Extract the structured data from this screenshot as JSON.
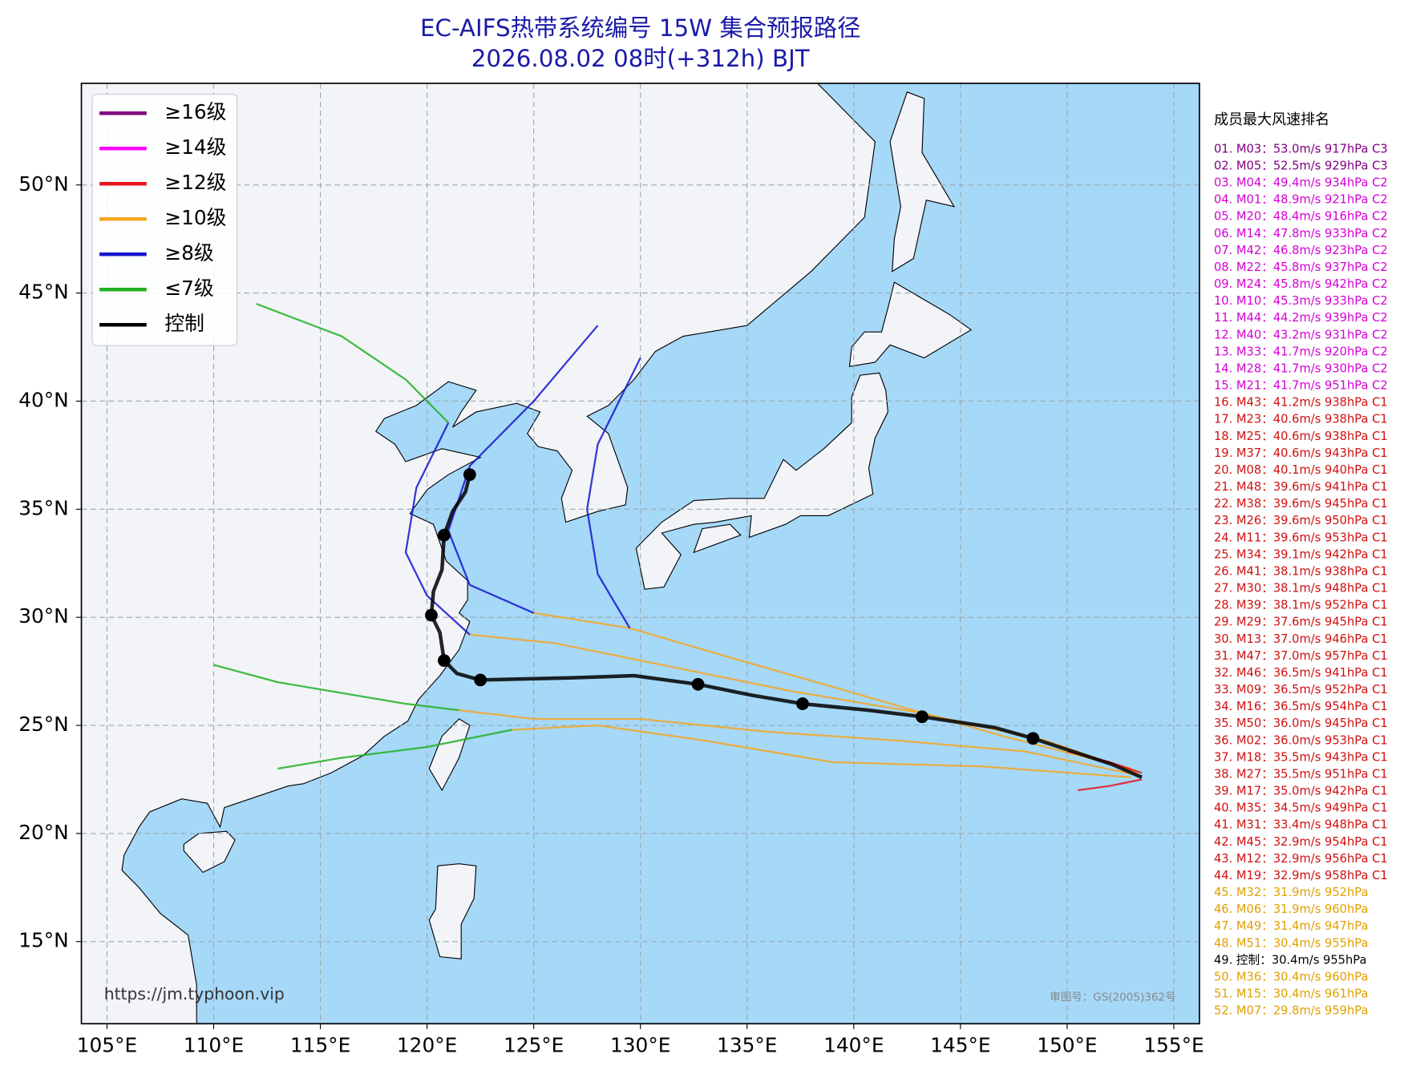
{
  "chart_data": {
    "type": "map",
    "title": "EC-AIFS热带系统编号 15W 集合预报路径",
    "subtitle": "2026.08.02 08时(+312h) BJT",
    "xlim": [
      103.8,
      156.2
    ],
    "ylim": [
      11.2,
      54.7
    ],
    "grid": true,
    "xticks": [
      {
        "value": 105,
        "label": "105°E"
      },
      {
        "value": 110,
        "label": "110°E"
      },
      {
        "value": 115,
        "label": "115°E"
      },
      {
        "value": 120,
        "label": "120°E"
      },
      {
        "value": 125,
        "label": "125°E"
      },
      {
        "value": 130,
        "label": "130°E"
      },
      {
        "value": 135,
        "label": "135°E"
      },
      {
        "value": 140,
        "label": "140°E"
      },
      {
        "value": 145,
        "label": "145°E"
      },
      {
        "value": 150,
        "label": "150°E"
      },
      {
        "value": 155,
        "label": "155°E"
      }
    ],
    "yticks": [
      {
        "value": 15,
        "label": "15°N"
      },
      {
        "value": 20,
        "label": "20°N"
      },
      {
        "value": 25,
        "label": "25°N"
      },
      {
        "value": 30,
        "label": "30°N"
      },
      {
        "value": 35,
        "label": "35°N"
      },
      {
        "value": 40,
        "label": "40°N"
      },
      {
        "value": 45,
        "label": "45°N"
      },
      {
        "value": 50,
        "label": "50°N"
      }
    ],
    "legend": [
      {
        "label": "≥16级",
        "color": "#800080"
      },
      {
        "label": "≥14级",
        "color": "#ff00ff"
      },
      {
        "label": "≥12级",
        "color": "#e8141c"
      },
      {
        "label": "≥10级",
        "color": "#f5a623"
      },
      {
        "label": "≥8级",
        "color": "#1515d0"
      },
      {
        "label": "≤7级",
        "color": "#22b022"
      },
      {
        "label": "控制",
        "color": "#000000"
      }
    ],
    "tracks": [
      {
        "color": "#f5a623",
        "lon": [
          153.3,
          149,
          143,
          137,
          131,
          126,
          122
        ],
        "lat": [
          22.8,
          24.3,
          25.6,
          26.6,
          27.8,
          28.8,
          29.2
        ]
      },
      {
        "color": "#f5a623",
        "lon": [
          153.3,
          148,
          142,
          136,
          130,
          125,
          121.5
        ],
        "lat": [
          22.7,
          23.8,
          24.3,
          24.7,
          25.3,
          25.3,
          25.7
        ]
      },
      {
        "color": "#f5a623",
        "lon": [
          153,
          147,
          140,
          134,
          129.5,
          125
        ],
        "lat": [
          23,
          24.5,
          26.5,
          28.2,
          29.5,
          30.2
        ]
      },
      {
        "color": "#f5a623",
        "lon": [
          153,
          146,
          139,
          133,
          128,
          124
        ],
        "lat": [
          22.6,
          23.1,
          23.3,
          24.3,
          25,
          24.8
        ]
      },
      {
        "color": "#1515d0",
        "lon": [
          125,
          122,
          121,
          122,
          125,
          128
        ],
        "lat": [
          30.2,
          31.5,
          34,
          37,
          40,
          43.5
        ]
      },
      {
        "color": "#1515d0",
        "lon": [
          122,
          120,
          119,
          119.5,
          121
        ],
        "lat": [
          29.2,
          31,
          33,
          36,
          39
        ]
      },
      {
        "color": "#1515d0",
        "lon": [
          129.5,
          128,
          127.5,
          128,
          130
        ],
        "lat": [
          29.5,
          32,
          35,
          38,
          42
        ]
      },
      {
        "color": "#22b022",
        "lon": [
          121.5,
          119,
          116,
          113,
          110
        ],
        "lat": [
          25.7,
          26,
          26.5,
          27,
          27.8
        ]
      },
      {
        "color": "#22b022",
        "lon": [
          121,
          119,
          116,
          112
        ],
        "lat": [
          39,
          41,
          43,
          44.5
        ]
      },
      {
        "color": "#22b022",
        "lon": [
          124,
          120,
          116,
          113
        ],
        "lat": [
          24.8,
          24,
          23.5,
          23
        ]
      },
      {
        "color": "#e8141c",
        "lon": [
          153.5,
          152,
          150.5
        ],
        "lat": [
          22.5,
          22.2,
          22
        ]
      },
      {
        "color": "#e8141c",
        "lon": [
          153.5,
          152,
          150
        ],
        "lat": [
          22.8,
          23.3,
          23.8
        ]
      }
    ],
    "control": {
      "color": "#000000",
      "lon": [
        153.5,
        152.1,
        148.4,
        146.6,
        143.2,
        140.7,
        137.6,
        135.2,
        132.7,
        129.7,
        126.7,
        122.5,
        121.4,
        120.8,
        120.6,
        120.2,
        120.3,
        120.7,
        120.8,
        121.2,
        121.8,
        122.0
      ],
      "lat": [
        22.6,
        23.2,
        24.4,
        24.9,
        25.4,
        25.7,
        26.0,
        26.4,
        26.9,
        27.3,
        27.2,
        27.1,
        27.4,
        28.0,
        29.3,
        30.1,
        31.2,
        32.2,
        33.8,
        34.9,
        35.8,
        36.6
      ],
      "dots_lon": [
        148.4,
        143.2,
        137.6,
        132.7,
        122.5,
        120.8,
        120.2,
        120.8,
        122.0
      ],
      "dots_lat": [
        24.4,
        25.4,
        26.0,
        26.9,
        27.1,
        28.0,
        30.1,
        33.8,
        36.6
      ]
    },
    "source": "https://jm.typhoon.vip",
    "review_no": "审图号：GS(2005)362号",
    "ranking": {
      "title": "成员最大风速排名",
      "items": [
        {
          "text": "01. M03：53.0m/s 917hPa C3",
          "color": "#800080"
        },
        {
          "text": "02. M05：52.5m/s 929hPa C3",
          "color": "#800080"
        },
        {
          "text": "03. M04：49.4m/s 934hPa C2",
          "color": "#d400d4"
        },
        {
          "text": "04. M01：48.9m/s 921hPa C2",
          "color": "#d400d4"
        },
        {
          "text": "05. M20：48.4m/s 916hPa C2",
          "color": "#d400d4"
        },
        {
          "text": "06. M14：47.8m/s 933hPa C2",
          "color": "#d400d4"
        },
        {
          "text": "07. M42：46.8m/s 923hPa C2",
          "color": "#d400d4"
        },
        {
          "text": "08. M22：45.8m/s 937hPa C2",
          "color": "#d400d4"
        },
        {
          "text": "09. M24：45.8m/s 942hPa C2",
          "color": "#d400d4"
        },
        {
          "text": "10. M10：45.3m/s 933hPa C2",
          "color": "#d400d4"
        },
        {
          "text": "11. M44：44.2m/s 939hPa C2",
          "color": "#d400d4"
        },
        {
          "text": "12. M40：43.2m/s 931hPa C2",
          "color": "#d400d4"
        },
        {
          "text": "13. M33：41.7m/s 920hPa C2",
          "color": "#d400d4"
        },
        {
          "text": "14. M28：41.7m/s 930hPa C2",
          "color": "#d400d4"
        },
        {
          "text": "15. M21：41.7m/s 951hPa C2",
          "color": "#d400d4"
        },
        {
          "text": "16. M43：41.2m/s 938hPa C1",
          "color": "#d01010"
        },
        {
          "text": "17. M23：40.6m/s 938hPa C1",
          "color": "#d01010"
        },
        {
          "text": "18. M25：40.6m/s 938hPa C1",
          "color": "#d01010"
        },
        {
          "text": "19. M37：40.6m/s 943hPa C1",
          "color": "#d01010"
        },
        {
          "text": "20. M08：40.1m/s 940hPa C1",
          "color": "#d01010"
        },
        {
          "text": "21. M48：39.6m/s 941hPa C1",
          "color": "#d01010"
        },
        {
          "text": "22. M38：39.6m/s 945hPa C1",
          "color": "#d01010"
        },
        {
          "text": "23. M26：39.6m/s 950hPa C1",
          "color": "#d01010"
        },
        {
          "text": "24. M11：39.6m/s 953hPa C1",
          "color": "#d01010"
        },
        {
          "text": "25. M34：39.1m/s 942hPa C1",
          "color": "#d01010"
        },
        {
          "text": "26. M41：38.1m/s 938hPa C1",
          "color": "#d01010"
        },
        {
          "text": "27. M30：38.1m/s 948hPa C1",
          "color": "#d01010"
        },
        {
          "text": "28. M39：38.1m/s 952hPa C1",
          "color": "#d01010"
        },
        {
          "text": "29. M29：37.6m/s 945hPa C1",
          "color": "#d01010"
        },
        {
          "text": "30. M13：37.0m/s 946hPa C1",
          "color": "#d01010"
        },
        {
          "text": "31. M47：37.0m/s 957hPa C1",
          "color": "#d01010"
        },
        {
          "text": "32. M46：36.5m/s 941hPa C1",
          "color": "#d01010"
        },
        {
          "text": "33. M09：36.5m/s 952hPa C1",
          "color": "#d01010"
        },
        {
          "text": "34. M16：36.5m/s 954hPa C1",
          "color": "#d01010"
        },
        {
          "text": "35. M50：36.0m/s 945hPa C1",
          "color": "#d01010"
        },
        {
          "text": "36. M02：36.0m/s 953hPa C1",
          "color": "#d01010"
        },
        {
          "text": "37. M18：35.5m/s 943hPa C1",
          "color": "#d01010"
        },
        {
          "text": "38. M27：35.5m/s 951hPa C1",
          "color": "#d01010"
        },
        {
          "text": "39. M17：35.0m/s 942hPa C1",
          "color": "#d01010"
        },
        {
          "text": "40. M35：34.5m/s 949hPa C1",
          "color": "#d01010"
        },
        {
          "text": "41. M31：33.4m/s 948hPa C1",
          "color": "#d01010"
        },
        {
          "text": "42. M45：32.9m/s 954hPa C1",
          "color": "#d01010"
        },
        {
          "text": "43. M12：32.9m/s 956hPa C1",
          "color": "#d01010"
        },
        {
          "text": "44. M19：32.9m/s 958hPa C1",
          "color": "#d01010"
        },
        {
          "text": "45. M32：31.9m/s 952hPa",
          "color": "#e0a000"
        },
        {
          "text": "46. M06：31.9m/s 960hPa",
          "color": "#e0a000"
        },
        {
          "text": "47. M49：31.4m/s 947hPa",
          "color": "#e0a000"
        },
        {
          "text": "48. M51：30.4m/s 955hPa",
          "color": "#e0a000"
        },
        {
          "text": "49. 控制：30.4m/s 955hPa",
          "color": "#000000"
        },
        {
          "text": "50. M36：30.4m/s 960hPa",
          "color": "#e0a000"
        },
        {
          "text": "51. M15：30.4m/s 961hPa",
          "color": "#e0a000"
        },
        {
          "text": "52. M07：29.8m/s 959hPa",
          "color": "#e0a000"
        }
      ]
    }
  }
}
